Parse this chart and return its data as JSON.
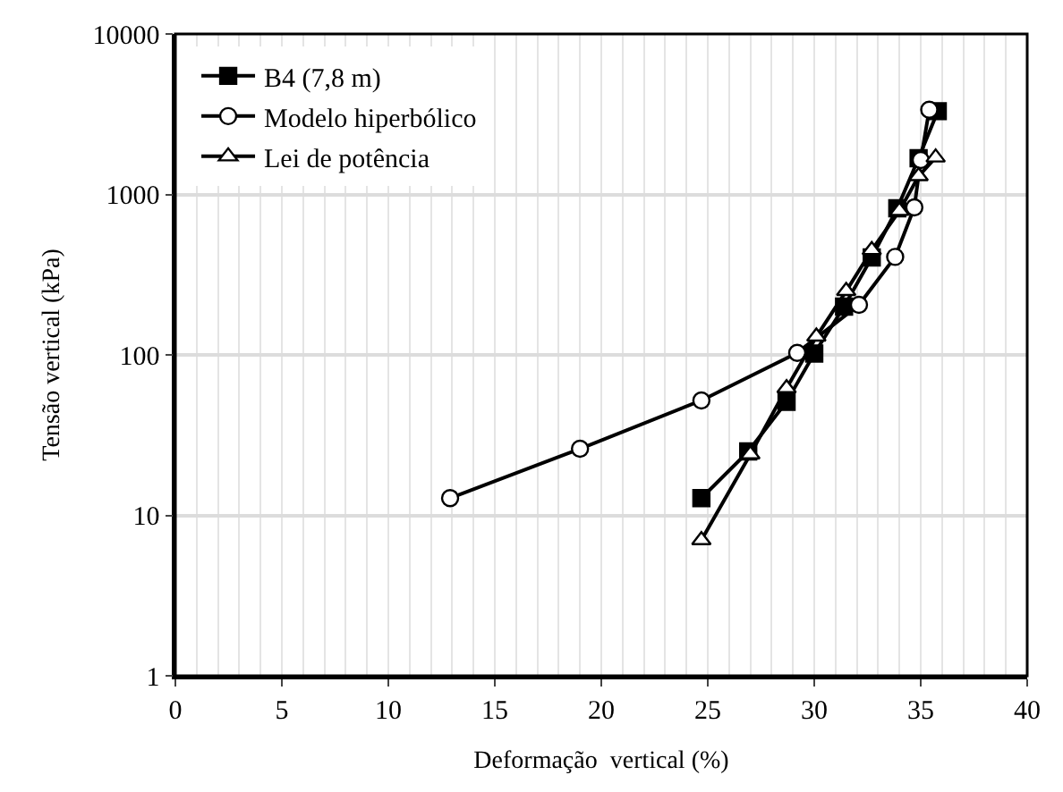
{
  "chart_data": {
    "type": "line",
    "xlabel": "Deformação  vertical (%)",
    "ylabel": "Tensão vertical (kPa)",
    "xlim": [
      0,
      40
    ],
    "xticks": [
      0,
      5,
      10,
      15,
      20,
      25,
      30,
      35,
      40
    ],
    "ylim": [
      1,
      10000
    ],
    "yticks": [
      1,
      10,
      100,
      1000,
      10000
    ],
    "log": "y",
    "grid": true,
    "legend": "top left",
    "series": [
      {
        "name": "B4 (7,8 m)",
        "color": "#000000",
        "marker": "square",
        "x": [
          24.7,
          26.9,
          28.7,
          30.0,
          31.4,
          32.7,
          33.9,
          34.9,
          35.8
        ],
        "values": [
          12.8,
          25,
          51,
          102,
          200,
          405,
          820,
          1680,
          3300
        ]
      },
      {
        "name": "Modelo hiperbólico",
        "color": "#000000",
        "marker": "circle",
        "x": [
          12.9,
          19.0,
          24.7,
          29.2,
          32.1,
          33.8,
          34.7,
          35.0,
          35.4
        ],
        "values": [
          12.8,
          26,
          52,
          103,
          205,
          408,
          830,
          1640,
          3370
        ]
      },
      {
        "name": "Lei de potência",
        "color": "#000000",
        "marker": "triangle",
        "x": [
          24.7,
          27.0,
          28.7,
          30.1,
          31.5,
          32.7,
          34.0,
          34.9,
          35.7
        ],
        "values": [
          7,
          24,
          62,
          130,
          250,
          450,
          790,
          1300,
          1700
        ]
      }
    ]
  }
}
